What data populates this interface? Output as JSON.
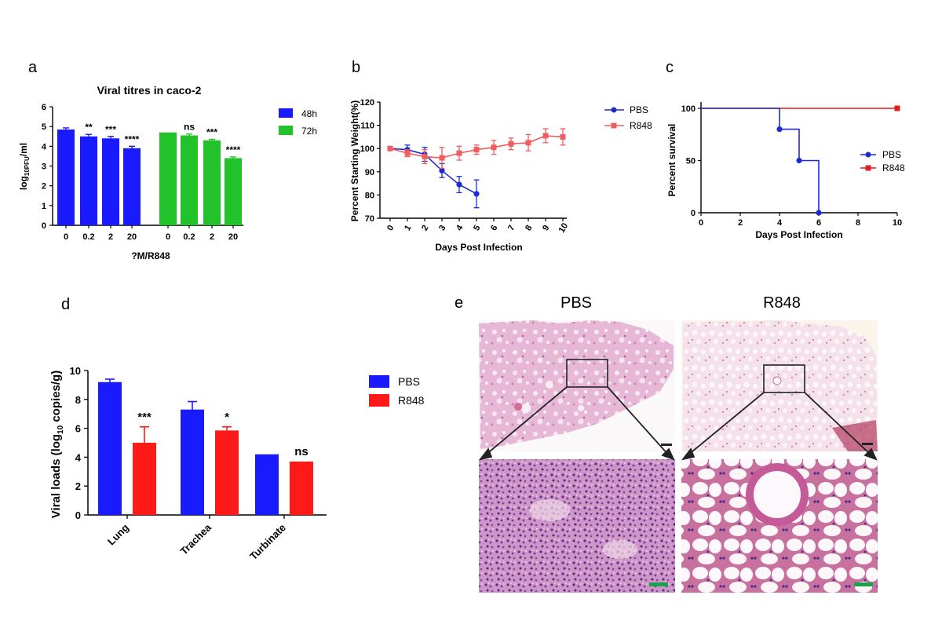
{
  "colors": {
    "blue": "#1a1aff",
    "green": "#22c32a",
    "red": "#ff1a1a",
    "salmon": "#ef5e5e",
    "navy": "#1c2bd1",
    "survRed": "#e01c1c"
  },
  "panels": {
    "a": "a",
    "b": "b",
    "c": "c",
    "d": "d",
    "e": "e"
  },
  "chart_data": [
    {
      "id": "a",
      "type": "bar",
      "title": "Viral titres in caco-2",
      "ylabel": "log10PFU/ml",
      "ylabel_parts": {
        "main": "log",
        "sub": "10PFU",
        "tail": "/ml"
      },
      "xlabel": "?M/R848",
      "ylim": [
        0,
        6
      ],
      "yticks": [
        0,
        1,
        2,
        3,
        4,
        5,
        6
      ],
      "groups": [
        {
          "name": "48h",
          "categories": [
            "0",
            "0.2",
            "2",
            "20"
          ],
          "values": [
            4.85,
            4.5,
            4.4,
            3.9
          ],
          "errors": [
            0.08,
            0.1,
            0.1,
            0.1
          ],
          "significance": [
            "",
            "**",
            "***",
            "****"
          ]
        },
        {
          "name": "72h",
          "categories": [
            "0",
            "0.2",
            "2",
            "20"
          ],
          "values": [
            4.7,
            4.55,
            4.3,
            3.4
          ],
          "errors": [
            0.0,
            0.07,
            0.05,
            0.06
          ],
          "significance": [
            "",
            "ns",
            "***",
            "****"
          ]
        }
      ],
      "legend": [
        "48h",
        "72h"
      ]
    },
    {
      "id": "b",
      "type": "line",
      "xlabel": "Days Post Infection",
      "ylabel": "Percent Starting Weight(%)",
      "ylim": [
        70,
        120
      ],
      "yticks": [
        70,
        80,
        90,
        100,
        110,
        120
      ],
      "xticks": [
        0,
        1,
        2,
        3,
        4,
        5,
        6,
        7,
        8,
        9,
        10
      ],
      "series": [
        {
          "name": "PBS",
          "x": [
            0,
            1,
            2,
            3,
            4,
            5
          ],
          "y": [
            100,
            99.5,
            97.5,
            90.5,
            84.5,
            80.5
          ],
          "err": [
            0.5,
            2,
            3,
            3,
            3.5,
            6
          ]
        },
        {
          "name": "R848",
          "x": [
            0,
            1,
            2,
            3,
            4,
            5,
            6,
            7,
            8,
            9,
            10
          ],
          "y": [
            100,
            98,
            96.5,
            96,
            98,
            99.5,
            100.5,
            102,
            102.5,
            105.5,
            105
          ],
          "err": [
            0.5,
            1.5,
            3,
            4.5,
            3,
            2,
            3,
            2.5,
            3.5,
            3,
            3.5
          ]
        }
      ],
      "legend": [
        "PBS",
        "R848"
      ]
    },
    {
      "id": "c",
      "type": "line",
      "subtype": "step",
      "xlabel": "Days Post Infection",
      "ylabel": "Percent survival",
      "ylim": [
        0,
        100
      ],
      "xlim": [
        0,
        10
      ],
      "yticks": [
        0,
        50,
        100
      ],
      "xticks": [
        0,
        2,
        4,
        6,
        8,
        10
      ],
      "series": [
        {
          "name": "PBS",
          "x": [
            0,
            4,
            5,
            6
          ],
          "y": [
            100,
            80,
            50,
            0
          ]
        },
        {
          "name": "R848",
          "x": [
            0,
            10
          ],
          "y": [
            100,
            100
          ]
        }
      ],
      "legend": [
        "PBS",
        "R848"
      ]
    },
    {
      "id": "d",
      "type": "bar",
      "ylabel": "Viral loads (log10 copies/g)",
      "ylabel_parts": {
        "main": "Viral loads (log",
        "sub": "10",
        "tail": " copies/g)"
      },
      "ylim": [
        0,
        10
      ],
      "yticks": [
        0,
        2,
        4,
        6,
        8,
        10
      ],
      "categories": [
        "Lung",
        "Trachea",
        "Turbinate"
      ],
      "series": [
        {
          "name": "PBS",
          "values": [
            9.2,
            7.3,
            4.2
          ],
          "errors": [
            0.2,
            0.55,
            0.0
          ]
        },
        {
          "name": "R848",
          "values": [
            5.0,
            5.85,
            3.7
          ],
          "errors": [
            1.1,
            0.25,
            0.0
          ]
        }
      ],
      "significance": [
        "***",
        "*",
        "ns"
      ],
      "legend": [
        "PBS",
        "R848"
      ]
    }
  ],
  "histology": {
    "labels": [
      "PBS",
      "R848"
    ]
  }
}
